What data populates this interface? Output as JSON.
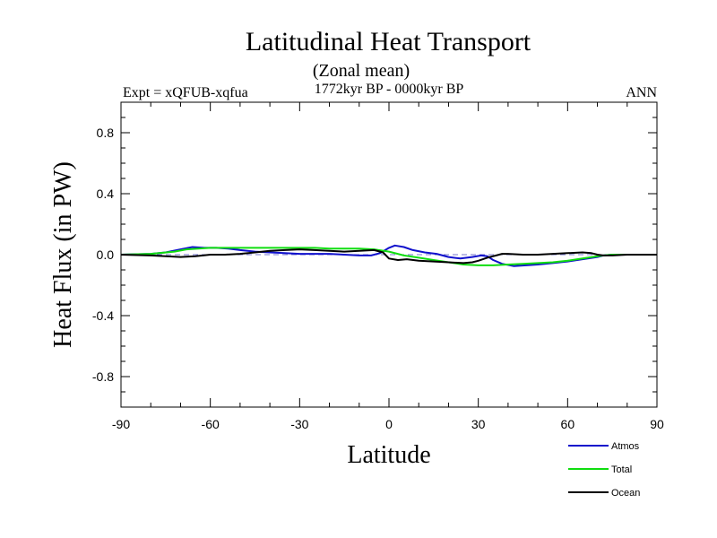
{
  "chart_data": {
    "type": "line",
    "title": "Latitudinal Heat Transport",
    "subtitle": "(Zonal mean)",
    "experiment_label": "Expt = xQFUB-xqfua",
    "period_label": "1772kyr BP - 0000kyr BP",
    "season_label": "ANN",
    "xlabel": "Latitude",
    "ylabel": "Heat Flux (in PW)",
    "xlim": [
      -90,
      90
    ],
    "ylim": [
      -1.0,
      1.0
    ],
    "x_ticks": [
      -90,
      -60,
      -30,
      0,
      30,
      60,
      90
    ],
    "x_tick_labels": [
      "-90",
      "-60",
      "-30",
      "0",
      "30",
      "60",
      "90"
    ],
    "y_ticks": [
      -0.8,
      -0.4,
      0.0,
      0.4,
      0.8
    ],
    "y_tick_labels": [
      "-0.8",
      "-0.4",
      "0.0",
      "0.4",
      "0.8"
    ],
    "zero_line": true,
    "series": [
      {
        "name": "Atmos",
        "color": "#1010cc",
        "x": [
          -90,
          -80,
          -75,
          -70,
          -66,
          -62,
          -58,
          -54,
          -50,
          -45,
          -40,
          -35,
          -30,
          -25,
          -20,
          -15,
          -10,
          -6,
          -3,
          0,
          2,
          5,
          8,
          12,
          16,
          20,
          24,
          28,
          31,
          33,
          35,
          38,
          42,
          50,
          55,
          60,
          65,
          70,
          72,
          75,
          80,
          90
        ],
        "y": [
          0.0,
          0.005,
          0.015,
          0.035,
          0.05,
          0.045,
          0.045,
          0.04,
          0.03,
          0.02,
          0.015,
          0.01,
          0.005,
          0.005,
          0.005,
          0.0,
          -0.005,
          -0.005,
          0.01,
          0.045,
          0.06,
          0.05,
          0.03,
          0.015,
          0.005,
          -0.015,
          -0.025,
          -0.015,
          -0.005,
          -0.01,
          -0.035,
          -0.06,
          -0.075,
          -0.065,
          -0.055,
          -0.045,
          -0.03,
          -0.015,
          -0.005,
          0.0,
          0.0,
          0.0
        ]
      },
      {
        "name": "Total",
        "color": "#10dd10",
        "x": [
          -90,
          -80,
          -72,
          -68,
          -64,
          -60,
          -55,
          -50,
          -45,
          -40,
          -35,
          -30,
          -25,
          -20,
          -15,
          -10,
          -5,
          0,
          5,
          10,
          15,
          20,
          25,
          30,
          35,
          40,
          45,
          50,
          55,
          60,
          65,
          70,
          72,
          75,
          80,
          90
        ],
        "y": [
          0.0,
          0.005,
          0.02,
          0.035,
          0.04,
          0.045,
          0.045,
          0.045,
          0.045,
          0.045,
          0.045,
          0.045,
          0.045,
          0.04,
          0.04,
          0.04,
          0.035,
          0.02,
          -0.005,
          -0.02,
          -0.035,
          -0.05,
          -0.065,
          -0.07,
          -0.07,
          -0.065,
          -0.06,
          -0.055,
          -0.05,
          -0.04,
          -0.025,
          -0.01,
          -0.005,
          0.0,
          0.0,
          0.0
        ]
      },
      {
        "name": "Ocean",
        "color": "#000000",
        "x": [
          -90,
          -80,
          -70,
          -65,
          -60,
          -55,
          -50,
          -45,
          -40,
          -35,
          -30,
          -25,
          -20,
          -15,
          -10,
          -5,
          -2,
          0,
          3,
          6,
          10,
          15,
          20,
          25,
          28,
          30,
          33,
          36,
          38,
          40,
          45,
          50,
          55,
          60,
          65,
          68,
          70,
          72,
          75,
          80,
          90
        ],
        "y": [
          0.0,
          -0.005,
          -0.015,
          -0.01,
          0.0,
          0.0,
          0.005,
          0.015,
          0.025,
          0.03,
          0.035,
          0.03,
          0.025,
          0.02,
          0.025,
          0.03,
          0.015,
          -0.025,
          -0.035,
          -0.03,
          -0.04,
          -0.045,
          -0.05,
          -0.055,
          -0.05,
          -0.04,
          -0.02,
          -0.005,
          0.005,
          0.005,
          0.0,
          0.0,
          0.005,
          0.01,
          0.015,
          0.01,
          0.0,
          -0.005,
          -0.005,
          0.0,
          0.0
        ]
      }
    ]
  }
}
